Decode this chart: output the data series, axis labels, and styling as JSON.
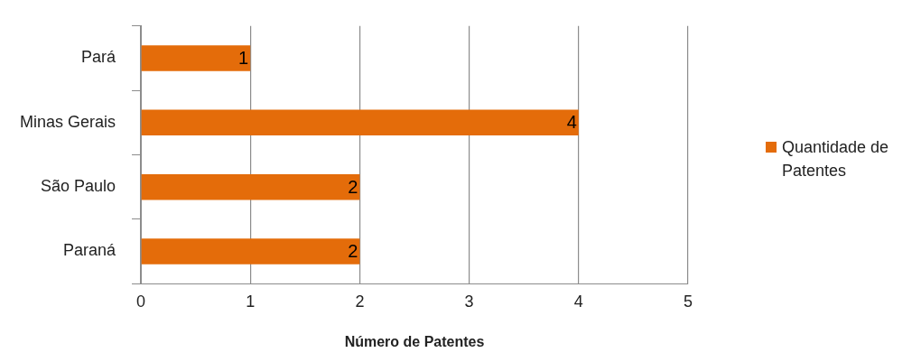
{
  "chart_data": {
    "type": "bar",
    "orientation": "horizontal",
    "xlabel": "Número de Patentes",
    "categories": [
      "Pará",
      "Minas Gerais",
      "São Paulo",
      "Paraná"
    ],
    "series": [
      {
        "name": "Quantidade de Patentes",
        "color": "#e46c0a",
        "values": [
          1,
          4,
          2,
          2
        ]
      }
    ],
    "xlim": [
      0,
      5
    ],
    "xticks": [
      0,
      1,
      2,
      3,
      4,
      5
    ],
    "grid": "x",
    "legend": "right",
    "data_labels": true
  }
}
